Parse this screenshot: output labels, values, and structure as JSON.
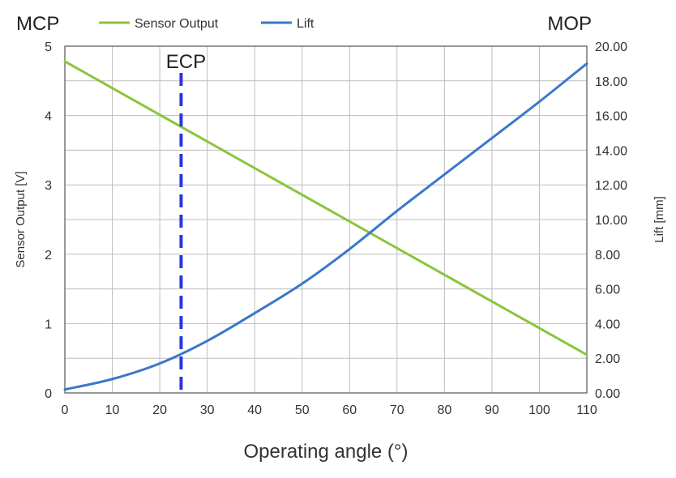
{
  "chart_data": {
    "type": "line",
    "xlabel": "Operating angle (°)",
    "ylabel_left": "Sensor Output [V]",
    "ylabel_right": "Lift [mm]",
    "xlim": [
      0,
      110
    ],
    "ylim_left": [
      0,
      5
    ],
    "ylim_right": [
      0,
      20
    ],
    "x_ticks": [
      "0",
      "10",
      "20",
      "30",
      "40",
      "50",
      "60",
      "70",
      "80",
      "90",
      "100",
      "110"
    ],
    "y_left_ticks": [
      "0",
      "1",
      "2",
      "3",
      "4",
      "5"
    ],
    "y_right_ticks": [
      "0.00",
      "2.00",
      "4.00",
      "6.00",
      "8.00",
      "10.00",
      "12.00",
      "14.00",
      "16.00",
      "18.00",
      "20.00"
    ],
    "grid": true,
    "legend": "top",
    "corner_labels": {
      "left": "MCP",
      "right": "MOP"
    },
    "annotation": {
      "label": "ECP",
      "x": 24.5,
      "style": "dashed",
      "color": "#2b35e6"
    },
    "series": [
      {
        "name": "Sensor Output",
        "axis": "left",
        "color": "#8cc43c",
        "x": [
          0,
          110
        ],
        "y": [
          4.78,
          0.55
        ]
      },
      {
        "name": "Lift",
        "axis": "right",
        "color": "#3a78c9",
        "x": [
          0,
          10,
          20,
          30,
          40,
          50,
          60,
          70,
          80,
          90,
          100,
          110
        ],
        "y": [
          0.2,
          0.8,
          1.7,
          3.0,
          4.6,
          6.3,
          8.3,
          10.5,
          12.6,
          14.7,
          16.8,
          19.0
        ]
      }
    ]
  }
}
